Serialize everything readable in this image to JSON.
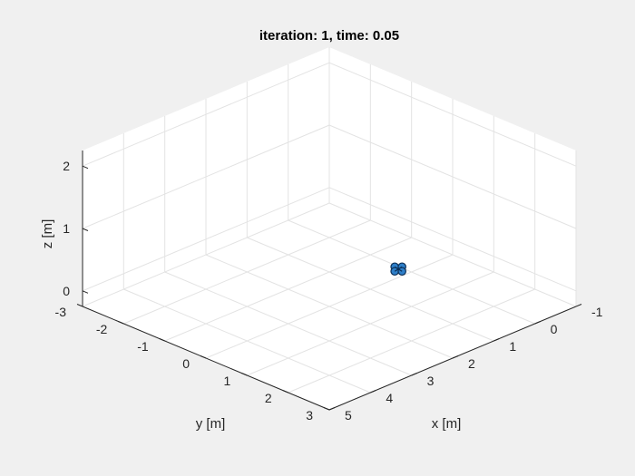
{
  "chart_data": {
    "type": "scatter",
    "title": "iteration: 1, time: 0.05",
    "xlabel": "x [m]",
    "ylabel": "y [m]",
    "zlabel": "z [m]",
    "xlim": [
      -1,
      5
    ],
    "ylim": [
      -3,
      3
    ],
    "zlim": [
      -0.25,
      2.25
    ],
    "x_ticks": [
      "-1",
      "0",
      "1",
      "2",
      "3",
      "4",
      "5"
    ],
    "y_ticks": [
      "-3",
      "-2",
      "-1",
      "0",
      "1",
      "2",
      "3"
    ],
    "z_ticks": [
      "0",
      "1",
      "2"
    ],
    "grid": true,
    "view": "3d-isometric",
    "marker_colors": {
      "fill": "#2e7fc9",
      "edge": "#0b2e55"
    },
    "points": [
      {
        "x": 1.6,
        "y": 1.28,
        "z": 0.6
      }
    ]
  },
  "colors": {
    "figure_background": "#f0f0f0",
    "axes_background": "#ffffff",
    "grid": "#e3e3e3",
    "axis_line": "#262626"
  }
}
